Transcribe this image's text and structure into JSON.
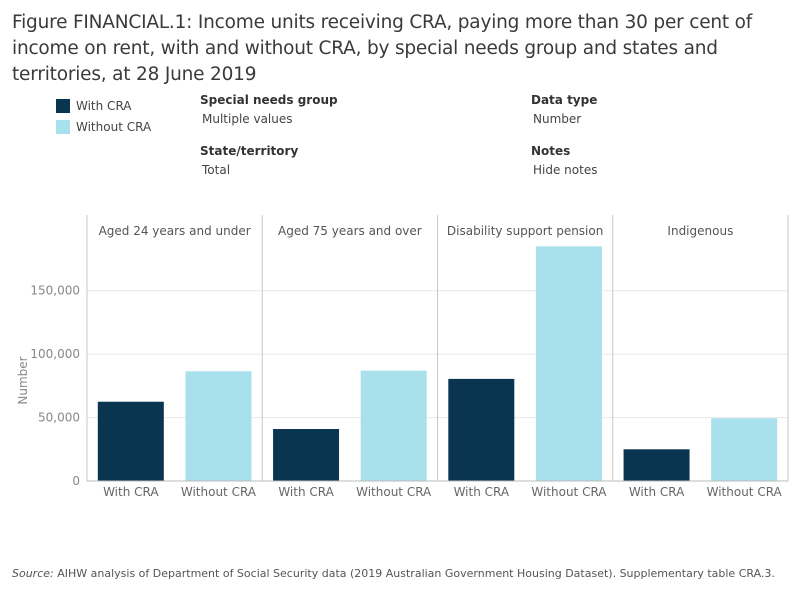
{
  "title": "Figure FINANCIAL.1: Income units receiving CRA, paying more than 30 per cent of income on rent, with and without CRA, by special needs group and states and territories, at 28 June 2019",
  "legend": [
    {
      "label": "With CRA",
      "color": "#0a3550"
    },
    {
      "label": "Without CRA",
      "color": "#a8e0ec"
    }
  ],
  "filters": {
    "special_needs": {
      "label": "Special needs group",
      "value": "Multiple values"
    },
    "data_type": {
      "label": "Data type",
      "value": "Number"
    },
    "state": {
      "label": "State/territory",
      "value": "Total"
    },
    "notes": {
      "label": "Notes",
      "value": "Hide notes"
    }
  },
  "chart_data": {
    "type": "bar",
    "ylabel": "Number",
    "ylim": [
      0,
      190000
    ],
    "yticks": [
      0,
      50000,
      100000,
      150000
    ],
    "ytick_labels": [
      "0",
      "50,000",
      "100,000",
      "150,000"
    ],
    "panels": [
      {
        "name": "Aged 24 years and under",
        "categories": [
          "With CRA",
          "Without CRA"
        ],
        "values": [
          62500,
          86500
        ]
      },
      {
        "name": "Aged 75 years and over",
        "categories": [
          "With CRA",
          "Without CRA"
        ],
        "values": [
          41000,
          87000
        ]
      },
      {
        "name": "Disability support pension",
        "categories": [
          "With CRA",
          "Without CRA"
        ],
        "values": [
          80500,
          185000
        ]
      },
      {
        "name": "Indigenous",
        "categories": [
          "With CRA",
          "Without CRA"
        ],
        "values": [
          25000,
          49500
        ]
      }
    ],
    "colors": [
      "#0a3550",
      "#a8e0ec"
    ]
  },
  "source": {
    "label": "Source:",
    "text": " AIHW analysis of Department of Social Security data (2019 Australian Government Housing Dataset). Supplementary table CRA.3."
  }
}
